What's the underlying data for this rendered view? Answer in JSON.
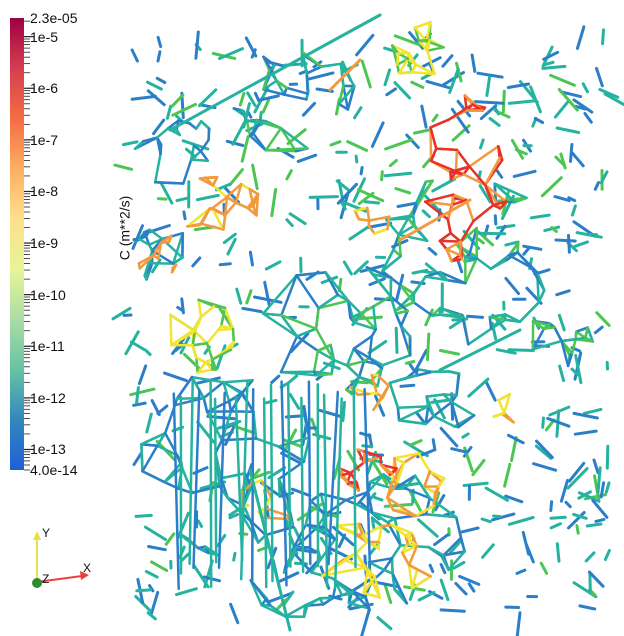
{
  "colorbar": {
    "title": "C (m**2/s)",
    "max_label": "2.3e-05",
    "min_label": "4.0e-14",
    "ticks": [
      "1e-5",
      "1e-6",
      "1e-7",
      "1e-8",
      "1e-9",
      "1e-10",
      "1e-11",
      "1e-12",
      "1e-13"
    ],
    "colors": [
      "#9e0142",
      "#d53e4f",
      "#f46d43",
      "#fdae61",
      "#fee08b",
      "#e6f598",
      "#abdda4",
      "#66c2a5",
      "#3288bd",
      "#1f5fd6"
    ]
  },
  "orientation_axes": {
    "x_label": "X",
    "y_label": "Y",
    "z_label": "Z",
    "x_color": "#e8413a",
    "y_color": "#e6e04a",
    "z_color": "#2e8b2e"
  },
  "scene": {
    "palette": {
      "teal": "#25b3a0",
      "blue": "#2a7fc8",
      "green": "#4cc552",
      "yellow": "#f2e42f",
      "orange": "#f29a3e",
      "red": "#e8312a"
    }
  }
}
